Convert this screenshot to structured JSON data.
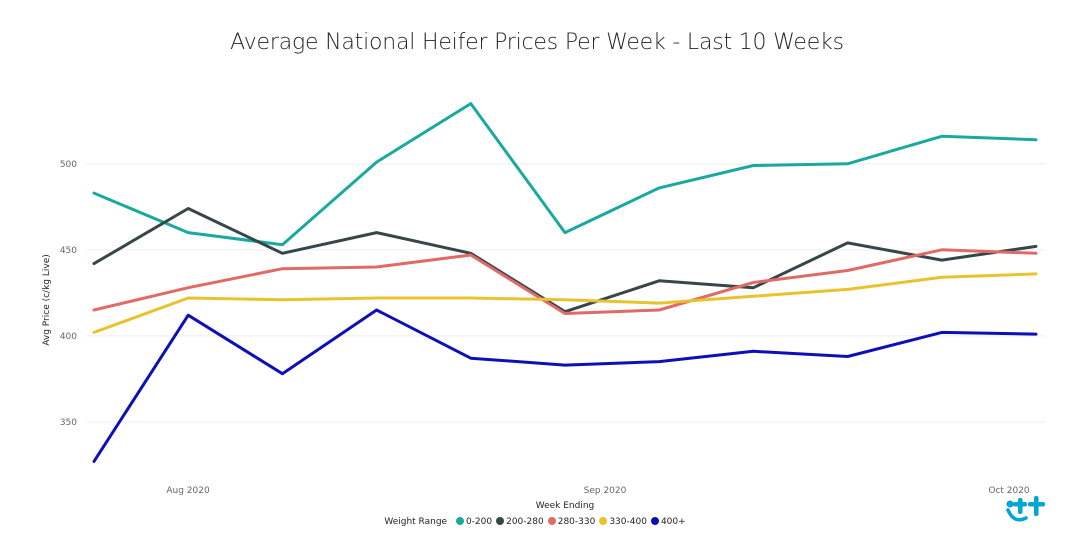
{
  "chart_data": {
    "type": "line",
    "title": "Average National Heifer Prices Per Week - Last 10 Weeks",
    "xlabel": "Week Ending",
    "ylabel": "Avg Price (c/kg Live)",
    "x_ticks": [
      "Aug 2020",
      "Sep 2020",
      "Oct 2020"
    ],
    "y_ticks": [
      350,
      400,
      450,
      500
    ],
    "ylim": [
      322,
      540
    ],
    "grid": true,
    "legend_title": "Weight Range",
    "legend_position": "bottom",
    "x_count": 11,
    "series": [
      {
        "name": "0-200",
        "color": "#1aa99f",
        "values": [
          483,
          460,
          453,
          501,
          535,
          460,
          486,
          499,
          500,
          516,
          514
        ]
      },
      {
        "name": "200-280",
        "color": "#374649",
        "values": [
          442,
          474,
          448,
          460,
          448,
          414,
          432,
          428,
          454,
          444,
          452
        ]
      },
      {
        "name": "280-330",
        "color": "#e06b66",
        "values": [
          415,
          428,
          439,
          440,
          447,
          413,
          415,
          431,
          438,
          450,
          448
        ]
      },
      {
        "name": "330-400",
        "color": "#e8c32e",
        "values": [
          402,
          422,
          421,
          422,
          422,
          421,
          419,
          423,
          427,
          434,
          436
        ]
      },
      {
        "name": "400+",
        "color": "#0f0fb8",
        "values": [
          327,
          412,
          378,
          415,
          387,
          383,
          385,
          391,
          388,
          402,
          401
        ]
      }
    ]
  }
}
